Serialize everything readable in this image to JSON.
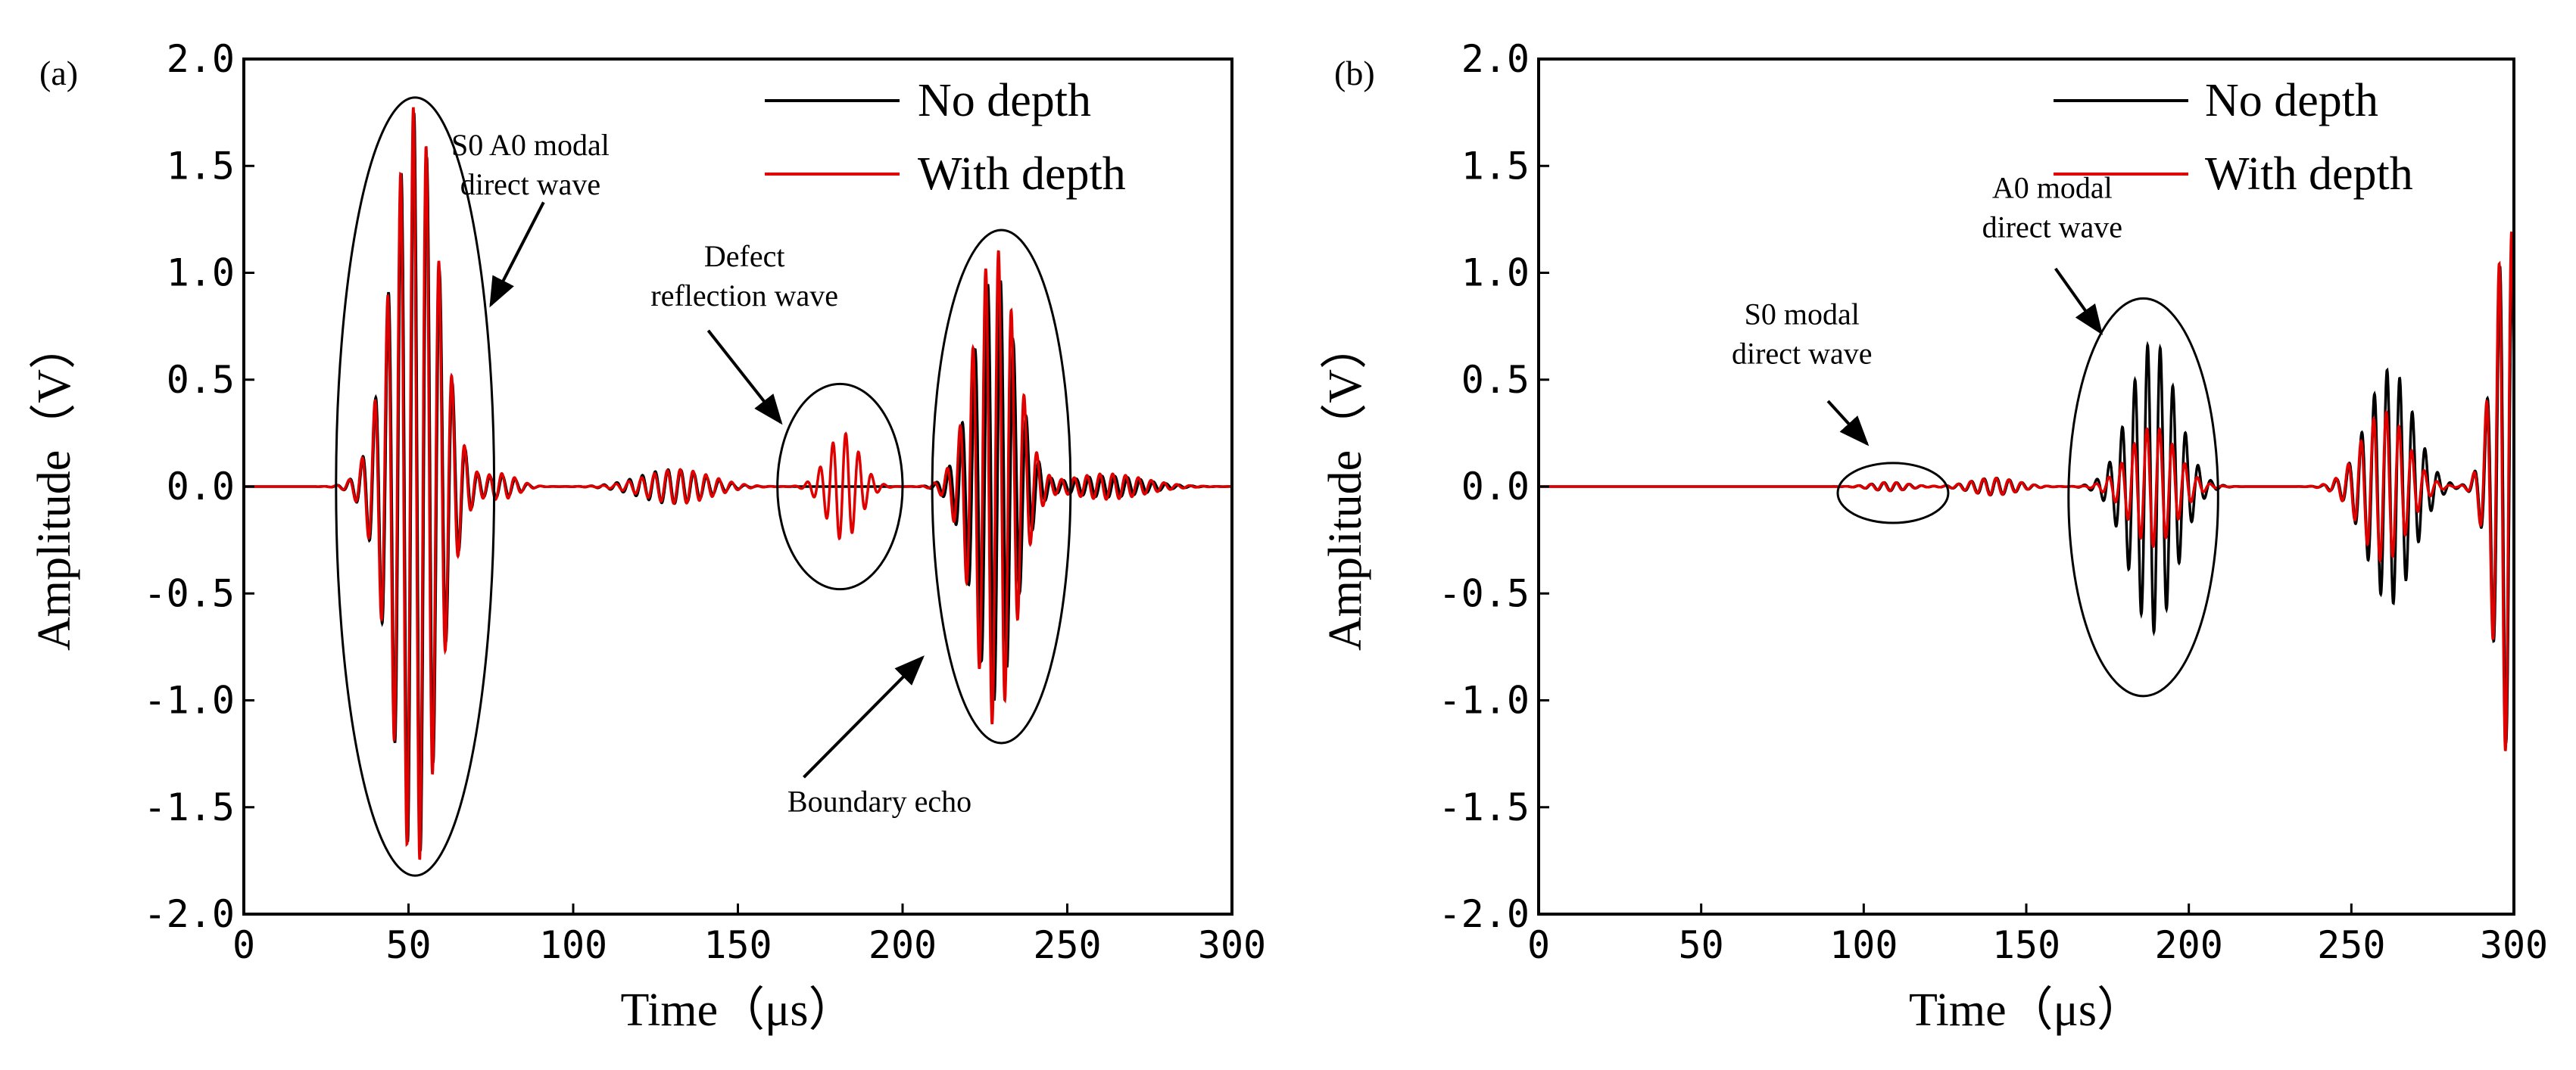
{
  "chart_data": [
    {
      "type": "line",
      "panel_label": "(a)",
      "xlabel": "Time（μs）",
      "ylabel": "Amplitude（V）",
      "xlim": [
        0,
        300
      ],
      "ylim": [
        -2.0,
        2.0
      ],
      "xticks": [
        0,
        50,
        100,
        150,
        200,
        250,
        300
      ],
      "xtick_labels": [
        "0",
        "50",
        "100",
        "150",
        "200",
        "250",
        "300"
      ],
      "yticks": [
        2.0,
        1.5,
        1.0,
        0.5,
        0.0,
        -0.5,
        -1.0,
        -1.5,
        -2.0
      ],
      "ytick_labels": [
        "2.0",
        "1.5",
        "1.0",
        "0.5",
        "0.0",
        "-0.5",
        "-1.0",
        "-1.5",
        "-2.0"
      ],
      "legend_position": "top-right",
      "series": [
        {
          "name": "No depth",
          "color": "#000000",
          "packets": [
            {
              "center": 52,
              "width": 10,
              "amplitude": 1.75,
              "period": 3.9
            },
            {
              "center": 78,
              "width": 7,
              "amplitude": 0.05,
              "period": 3.9
            },
            {
              "center": 130,
              "width": 14,
              "amplitude": 0.08,
              "period": 3.9
            },
            {
              "center": 228,
              "width": 9,
              "amplitude": 1.0,
              "period": 3.9
            },
            {
              "center": 262,
              "width": 16,
              "amplitude": 0.05,
              "period": 3.9
            }
          ]
        },
        {
          "name": "With depth",
          "color": "#e00000",
          "packets": [
            {
              "center": 52,
              "width": 10,
              "amplitude": 1.78,
              "period": 3.9
            },
            {
              "center": 78,
              "width": 7,
              "amplitude": 0.06,
              "period": 3.9
            },
            {
              "center": 132,
              "width": 14,
              "amplitude": 0.08,
              "period": 3.9
            },
            {
              "center": 182,
              "width": 7,
              "amplitude": 0.25,
              "period": 3.9
            },
            {
              "center": 228,
              "width": 9,
              "amplitude": 1.12,
              "period": 3.9
            },
            {
              "center": 262,
              "width": 16,
              "amplitude": 0.06,
              "period": 3.9
            }
          ]
        }
      ],
      "ellipses": [
        {
          "cx": 52,
          "cy": 0.0,
          "rx": 24,
          "ry": 1.82
        },
        {
          "cx": 181,
          "cy": 0.0,
          "rx": 19,
          "ry": 0.48
        },
        {
          "cx": 230,
          "cy": 0.0,
          "rx": 21,
          "ry": 1.2
        }
      ],
      "annotations": [
        {
          "lines": [
            "S0 A0 modal",
            "direct wave"
          ],
          "x": 87,
          "y": 1.55
        },
        {
          "lines": [
            "Defect",
            "reflection wave"
          ],
          "x": 152,
          "y": 1.03
        },
        {
          "lines": [
            "Boundary echo"
          ],
          "x": 193,
          "y": -1.52
        }
      ],
      "arrows": [
        {
          "from": [
            91,
            1.33
          ],
          "to": [
            75,
            0.85
          ]
        },
        {
          "from": [
            141,
            0.73
          ],
          "to": [
            163,
            0.3
          ]
        },
        {
          "from": [
            170,
            -1.36
          ],
          "to": [
            206,
            -0.8
          ]
        }
      ]
    },
    {
      "type": "line",
      "panel_label": "(b)",
      "xlabel": "Time（μs）",
      "ylabel": "Amplitude（V）",
      "xlim": [
        0,
        300
      ],
      "ylim": [
        -2.0,
        2.0
      ],
      "xticks": [
        0,
        50,
        100,
        150,
        200,
        250,
        300
      ],
      "xtick_labels": [
        "0",
        "50",
        "100",
        "150",
        "200",
        "250",
        "300"
      ],
      "yticks": [
        2.0,
        1.5,
        1.0,
        0.5,
        0.0,
        -0.5,
        -1.0,
        -1.5,
        -2.0
      ],
      "ytick_labels": [
        "2.0",
        "1.5",
        "1.0",
        "0.5",
        "0.0",
        "-0.5",
        "-1.0",
        "-1.5",
        "-2.0"
      ],
      "legend_position": "top-right",
      "series": [
        {
          "name": "No depth",
          "color": "#000000",
          "packets": [
            {
              "center": 108,
              "width": 8,
              "amplitude": 0.02,
              "period": 3.9
            },
            {
              "center": 140,
              "width": 10,
              "amplitude": 0.04,
              "period": 3.9
            },
            {
              "center": 189,
              "width": 10,
              "amplitude": 0.68,
              "period": 3.9
            },
            {
              "center": 262,
              "width": 10,
              "amplitude": 0.55,
              "period": 3.9
            },
            {
              "center": 298,
              "width": 6,
              "amplitude": 1.2,
              "period": 3.9
            }
          ]
        },
        {
          "name": "With depth",
          "color": "#e00000",
          "packets": [
            {
              "center": 108,
              "width": 8,
              "amplitude": 0.02,
              "period": 3.9
            },
            {
              "center": 140,
              "width": 10,
              "amplitude": 0.04,
              "period": 3.9
            },
            {
              "center": 189,
              "width": 10,
              "amplitude": 0.28,
              "period": 3.9
            },
            {
              "center": 260,
              "width": 10,
              "amplitude": 0.35,
              "period": 3.9
            },
            {
              "center": 298,
              "width": 6,
              "amplitude": 1.25,
              "period": 3.9
            }
          ]
        }
      ],
      "ellipses": [
        {
          "cx": 109,
          "cy": -0.03,
          "rx": 17,
          "ry": 0.14
        },
        {
          "cx": 186,
          "cy": -0.05,
          "rx": 23,
          "ry": 0.93
        }
      ],
      "annotations": [
        {
          "lines": [
            "A0 modal",
            "direct wave"
          ],
          "x": 158,
          "y": 1.35
        },
        {
          "lines": [
            "S0 modal",
            "direct wave"
          ],
          "x": 81,
          "y": 0.76
        }
      ],
      "arrows": [
        {
          "from": [
            159,
            1.02
          ],
          "to": [
            173,
            0.72
          ]
        },
        {
          "from": [
            89,
            0.4
          ],
          "to": [
            101,
            0.2
          ]
        }
      ]
    }
  ]
}
